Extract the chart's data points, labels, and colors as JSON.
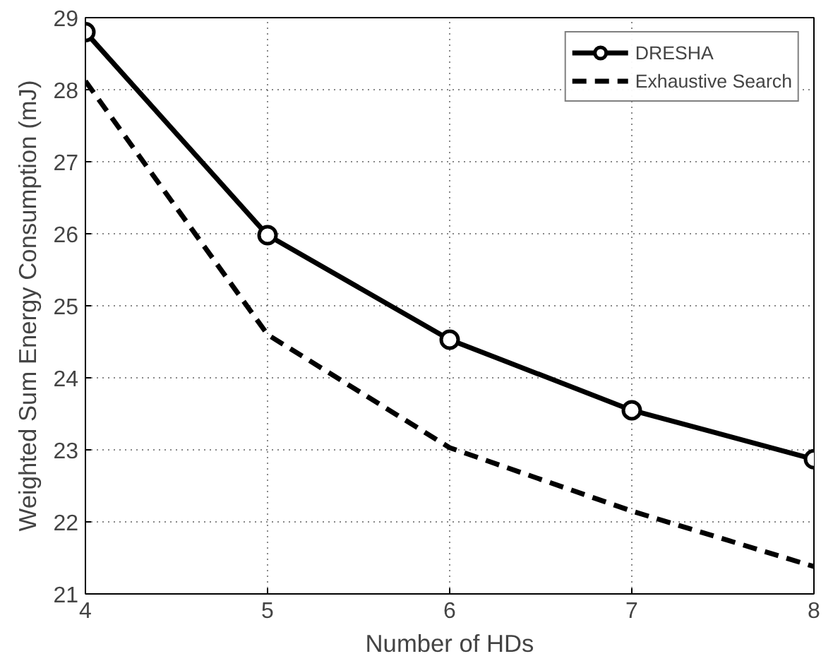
{
  "chart_data": {
    "type": "line",
    "xlabel": "Number of HDs",
    "ylabel": "Weighted Sum Energy Consumption (mJ)",
    "x": [
      4,
      5,
      6,
      7,
      8
    ],
    "xlim": [
      4,
      8
    ],
    "xticks": [
      4,
      5,
      6,
      7,
      8
    ],
    "ylim": [
      21,
      29
    ],
    "yticks": [
      21,
      22,
      23,
      24,
      25,
      26,
      27,
      28,
      29
    ],
    "grid": true,
    "legend": "top right",
    "series": [
      {
        "name": "DRESHA",
        "color": "#000000",
        "values": [
          28.8,
          25.98,
          24.53,
          23.55,
          22.87
        ],
        "marker": "circle",
        "line_style": "solid"
      },
      {
        "name": "Exhaustive Search",
        "color": "#000000",
        "values": [
          28.12,
          24.6,
          23.03,
          22.15,
          21.38
        ],
        "marker": "none",
        "line_style": "dashed"
      }
    ]
  }
}
